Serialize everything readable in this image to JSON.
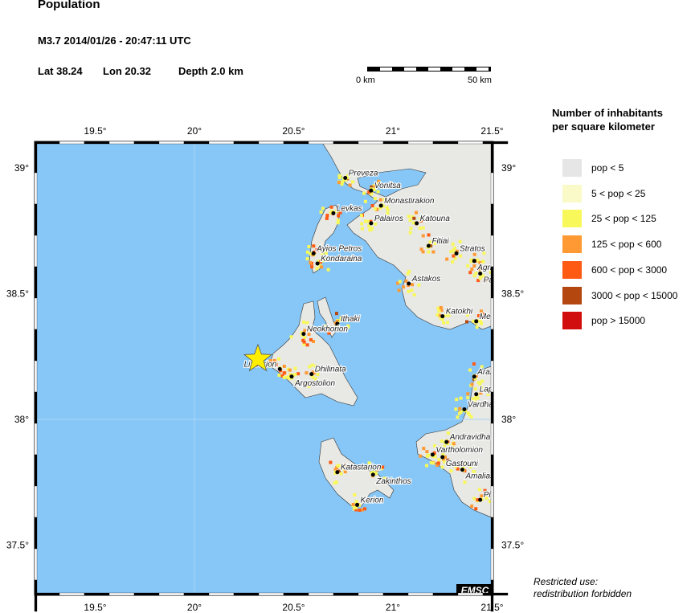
{
  "header": {
    "title": "Population",
    "event": "M3.7  2014/01/26 - 20:47:11 UTC",
    "lat": "Lat 38.24",
    "lon": "Lon  20.32",
    "depth": "Depth  2.0 km"
  },
  "scale": {
    "start": "0 km",
    "end": "50 km"
  },
  "axes": {
    "lon_ticks": [
      "19.5°",
      "20°",
      "20.5°",
      "21°",
      "21.5°"
    ],
    "lat_ticks": [
      "39°",
      "38.5°",
      "38°",
      "37.5°"
    ]
  },
  "epicenter": {
    "lat": 38.24,
    "lon": 20.32,
    "marker": "star-icon",
    "color": "#ffee00"
  },
  "cities": [
    {
      "name": "Preveza",
      "lon": 20.76,
      "lat": 38.96
    },
    {
      "name": "Vonitsa",
      "lon": 20.89,
      "lat": 38.91
    },
    {
      "name": "Monastirakion",
      "lon": 20.94,
      "lat": 38.85
    },
    {
      "name": "Levkas",
      "lon": 20.7,
      "lat": 38.82
    },
    {
      "name": "Palairos",
      "lon": 20.89,
      "lat": 38.78
    },
    {
      "name": "Katouna",
      "lon": 21.12,
      "lat": 38.78
    },
    {
      "name": "Fitiai",
      "lon": 21.18,
      "lat": 38.69
    },
    {
      "name": "Stratos",
      "lon": 21.32,
      "lat": 38.66
    },
    {
      "name": "Agrinion",
      "lon": 21.41,
      "lat": 38.63
    },
    {
      "name": "Panaitolion",
      "lon": 21.44,
      "lat": 38.58
    },
    {
      "name": "Ayios Petros",
      "lon": 20.6,
      "lat": 38.66
    },
    {
      "name": "Kondaraina",
      "lon": 20.62,
      "lat": 38.62
    },
    {
      "name": "Astakos",
      "lon": 21.08,
      "lat": 38.54
    },
    {
      "name": "Katokhi",
      "lon": 21.25,
      "lat": 38.41
    },
    {
      "name": "Mesolongion",
      "lon": 21.42,
      "lat": 38.39
    },
    {
      "name": "Ithaki",
      "lon": 20.72,
      "lat": 38.38
    },
    {
      "name": "Neokhorion",
      "lon": 20.55,
      "lat": 38.34
    },
    {
      "name": "Dhilinata",
      "lon": 20.59,
      "lat": 38.18
    },
    {
      "name": "Lixourion",
      "lon": 20.43,
      "lat": 38.2
    },
    {
      "name": "Argostolion",
      "lon": 20.49,
      "lat": 38.17
    },
    {
      "name": "Araxos",
      "lon": 21.41,
      "lat": 38.17
    },
    {
      "name": "Lapas",
      "lon": 21.42,
      "lat": 38.1
    },
    {
      "name": "Vardha",
      "lon": 21.36,
      "lat": 38.04
    },
    {
      "name": "Andravidha",
      "lon": 21.27,
      "lat": 37.91
    },
    {
      "name": "Vartholomion",
      "lon": 21.2,
      "lat": 37.86
    },
    {
      "name": "Gastouni",
      "lon": 21.25,
      "lat": 37.85
    },
    {
      "name": "Amalias",
      "lon": 21.35,
      "lat": 37.8
    },
    {
      "name": "Katastarion",
      "lon": 20.72,
      "lat": 37.79
    },
    {
      "name": "Zakinthos",
      "lon": 20.9,
      "lat": 37.78
    },
    {
      "name": "Kerion",
      "lon": 20.82,
      "lat": 37.66
    },
    {
      "name": "Pirgos",
      "lon": 21.44,
      "lat": 37.68
    }
  ],
  "legend": {
    "title_line1": "Number of inhabitants",
    "title_line2": "per square kilometer",
    "items": [
      {
        "label": "pop < 5",
        "color": "#e6e6e6"
      },
      {
        "label": "5 < pop < 25",
        "color": "#fafac8"
      },
      {
        "label": "25 < pop < 125",
        "color": "#f8f85a"
      },
      {
        "label": "125 < pop < 600",
        "color": "#ff9933"
      },
      {
        "label": "600 < pop < 3000",
        "color": "#ff5a14"
      },
      {
        "label": "3000 < pop < 15000",
        "color": "#b4460f"
      },
      {
        "label": "pop > 15000",
        "color": "#d20f0f"
      }
    ]
  },
  "colors": {
    "sea": "#87c7f7",
    "land": "#e8e8e4"
  },
  "logo": "EMSC",
  "notice": {
    "line1": "Restricted use:",
    "line2": "redistribution forbidden"
  }
}
